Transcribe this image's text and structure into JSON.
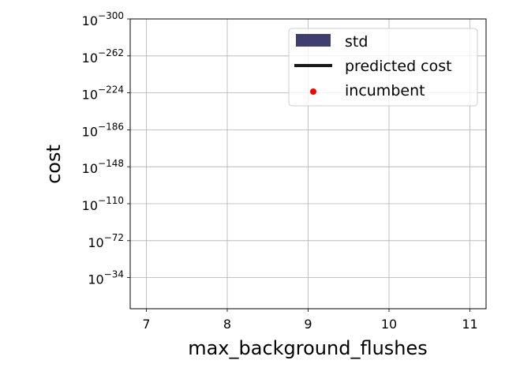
{
  "chart_data": {
    "type": "line",
    "title": "",
    "xlabel": "max_background_flushes",
    "ylabel": "cost",
    "xlim": [
      6.8,
      11.2
    ],
    "x_ticks": [
      7,
      8,
      9,
      10,
      11
    ],
    "y_scale": "log",
    "y_tick_base": "10",
    "y_tick_exponents": [
      "−300",
      "−262",
      "−224",
      "−186",
      "−148",
      "−110",
      "−72",
      "−34"
    ],
    "grid": true,
    "legend_position": "top-right",
    "legend": [
      {
        "label": "std",
        "kind": "patch",
        "color": "#3f3f6f"
      },
      {
        "label": "predicted cost",
        "kind": "line",
        "color": "#1a1a1a"
      },
      {
        "label": "incumbent",
        "kind": "marker",
        "color": "#ff0000"
      }
    ],
    "series": []
  }
}
